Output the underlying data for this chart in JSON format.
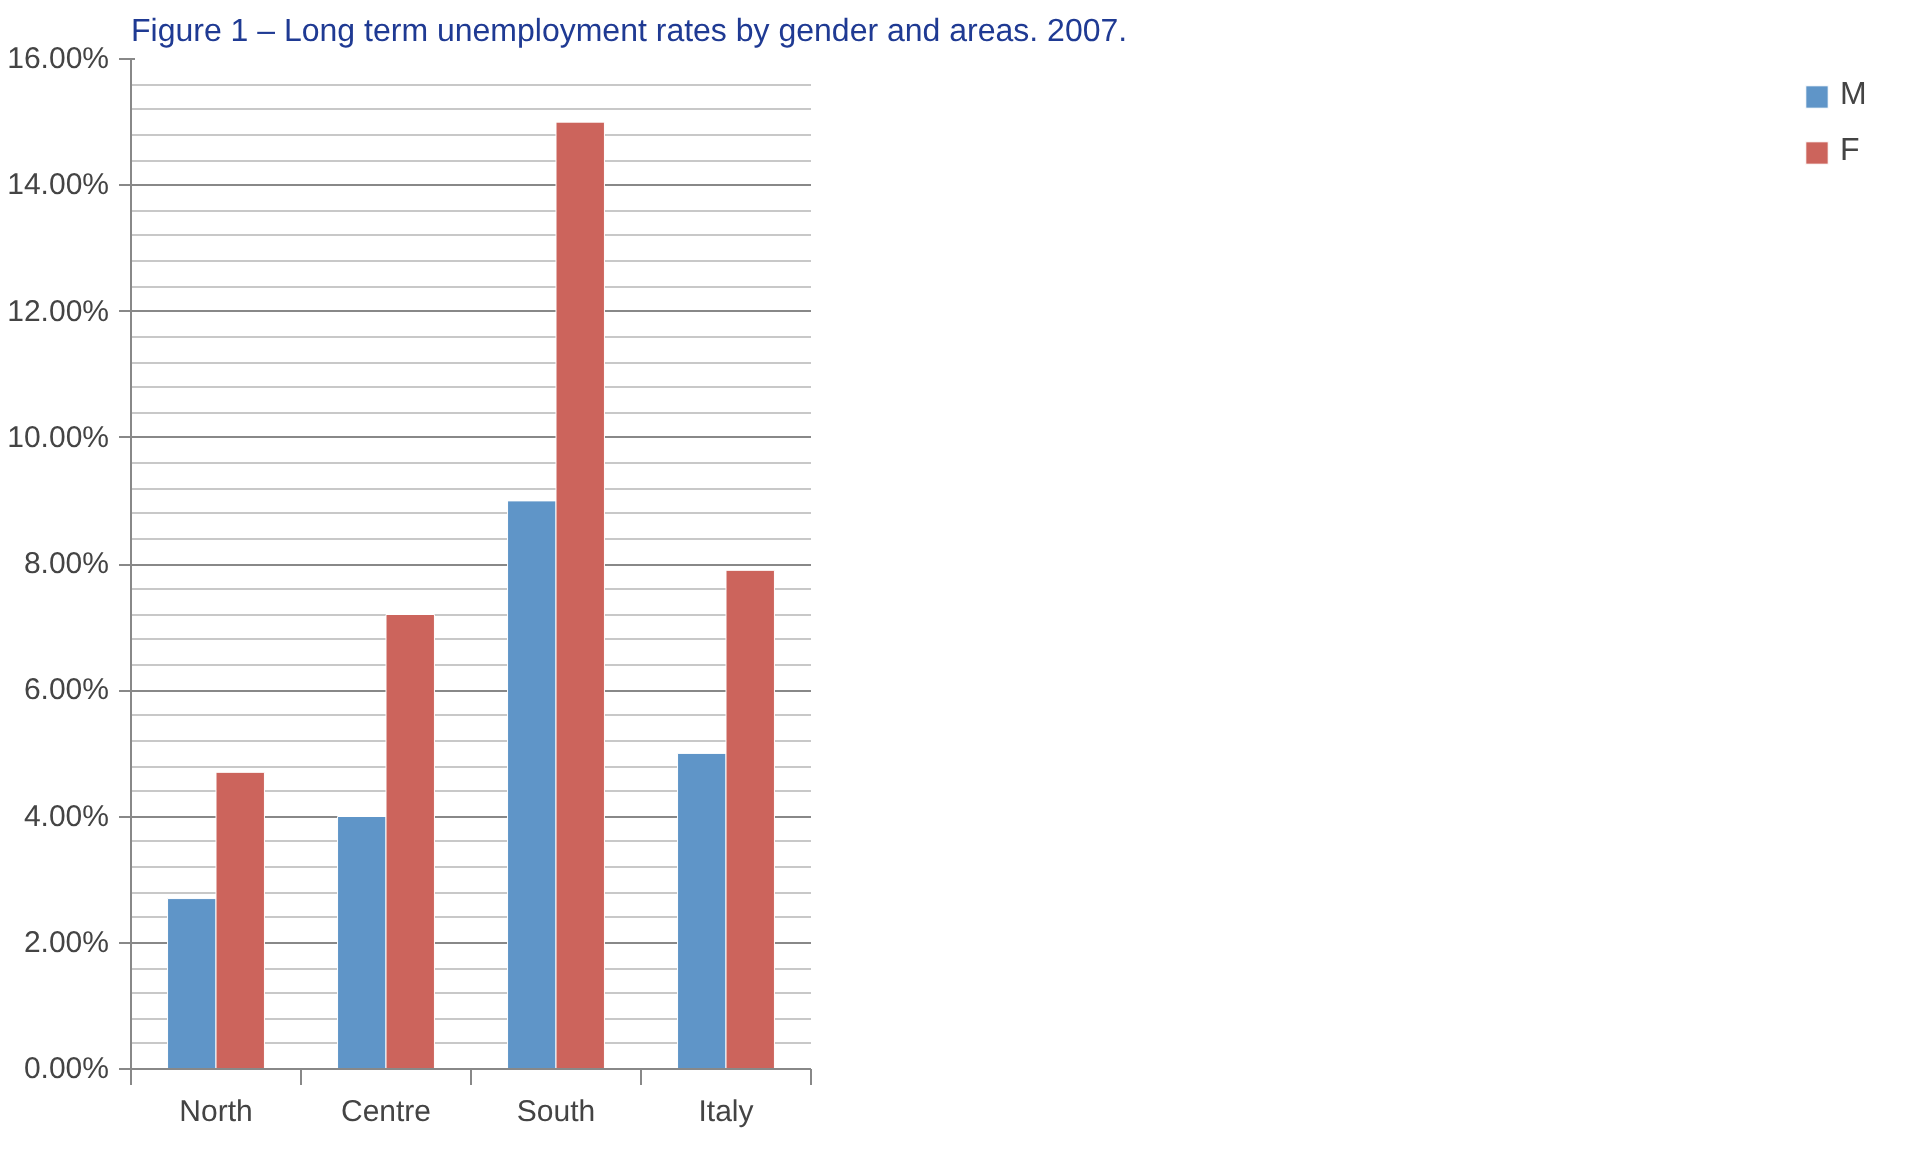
{
  "chart_data": {
    "type": "bar",
    "title": "Figure 1 – Long term unemployment rates by gender and areas. 2007.",
    "categories": [
      "North",
      "Centre",
      "South",
      "Italy"
    ],
    "series": [
      {
        "name": "M",
        "color": "#5f95c8",
        "values": [
          2.7,
          4.0,
          9.0,
          5.0
        ]
      },
      {
        "name": "F",
        "color": "#cc645c",
        "values": [
          4.7,
          7.2,
          15.0,
          7.9
        ]
      }
    ],
    "ylim": [
      0,
      16
    ],
    "yticks": [
      {
        "value": 0,
        "label": "0.00%"
      },
      {
        "value": 2,
        "label": "2.00%"
      },
      {
        "value": 4,
        "label": "4.00%"
      },
      {
        "value": 6,
        "label": "6.00%"
      },
      {
        "value": 8,
        "label": "8.00%"
      },
      {
        "value": 10,
        "label": "10.00%"
      },
      {
        "value": 12,
        "label": "12.00%"
      },
      {
        "value": 14,
        "label": "14.00%"
      },
      {
        "value": 16,
        "label": "16.00%"
      }
    ],
    "grid": "y",
    "legend": "right"
  }
}
